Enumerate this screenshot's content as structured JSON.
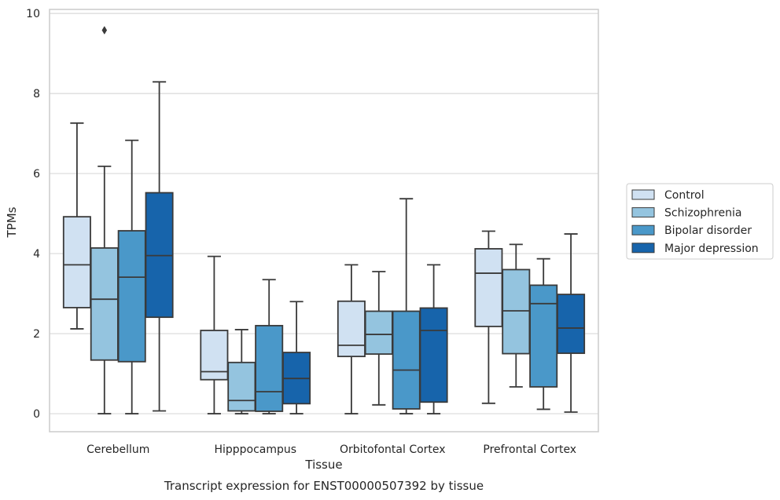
{
  "chart_data": {
    "type": "box",
    "xlabel": "Tissue",
    "ylabel": "TPMs",
    "caption": "Transcript expression for ENST00000507392 by tissue",
    "ylim": [
      -0.45,
      10.1
    ],
    "yticks": [
      0,
      2,
      4,
      6,
      8,
      10
    ],
    "grid": "horizontal",
    "legend_position": "right",
    "categories": [
      "Cerebellum",
      "Hipppocampus",
      "Orbitofontal Cortex",
      "Prefrontal Cortex"
    ],
    "series": [
      {
        "name": "Control",
        "color": "#d0e1f2",
        "boxes": [
          {
            "min": 2.12,
            "q1": 2.65,
            "median": 3.72,
            "q3": 4.92,
            "max": 7.26,
            "outliers": []
          },
          {
            "min": 0.0,
            "q1": 0.85,
            "median": 1.05,
            "q3": 2.08,
            "max": 3.93,
            "outliers": []
          },
          {
            "min": 0.0,
            "q1": 1.43,
            "median": 1.71,
            "q3": 2.81,
            "max": 3.72,
            "outliers": []
          },
          {
            "min": 0.26,
            "q1": 2.18,
            "median": 3.51,
            "q3": 4.12,
            "max": 4.56,
            "outliers": []
          }
        ]
      },
      {
        "name": "Schizophrenia",
        "color": "#94c4df",
        "boxes": [
          {
            "min": 0.0,
            "q1": 1.34,
            "median": 2.86,
            "q3": 4.14,
            "max": 6.18,
            "outliers": [
              9.58
            ]
          },
          {
            "min": 0.0,
            "q1": 0.07,
            "median": 0.33,
            "q3": 1.28,
            "max": 2.1,
            "outliers": []
          },
          {
            "min": 0.22,
            "q1": 1.49,
            "median": 1.98,
            "q3": 2.56,
            "max": 3.55,
            "outliers": []
          },
          {
            "min": 0.67,
            "q1": 1.5,
            "median": 2.57,
            "q3": 3.6,
            "max": 4.23,
            "outliers": []
          }
        ]
      },
      {
        "name": "Bipolar disorder",
        "color": "#4a98c9",
        "boxes": [
          {
            "min": 0.0,
            "q1": 1.3,
            "median": 3.41,
            "q3": 4.57,
            "max": 6.83,
            "outliers": []
          },
          {
            "min": 0.0,
            "q1": 0.06,
            "median": 0.55,
            "q3": 2.2,
            "max": 3.35,
            "outliers": []
          },
          {
            "min": 0.0,
            "q1": 0.12,
            "median": 1.09,
            "q3": 2.56,
            "max": 5.37,
            "outliers": []
          },
          {
            "min": 0.11,
            "q1": 0.67,
            "median": 2.75,
            "q3": 3.21,
            "max": 3.87,
            "outliers": []
          }
        ]
      },
      {
        "name": "Major depression",
        "color": "#1764ab",
        "boxes": [
          {
            "min": 0.07,
            "q1": 2.41,
            "median": 3.95,
            "q3": 5.52,
            "max": 8.29,
            "outliers": []
          },
          {
            "min": 0.0,
            "q1": 0.25,
            "median": 0.88,
            "q3": 1.53,
            "max": 2.8,
            "outliers": []
          },
          {
            "min": 0.0,
            "q1": 0.29,
            "median": 2.08,
            "q3": 2.64,
            "max": 3.72,
            "outliers": []
          },
          {
            "min": 0.04,
            "q1": 1.51,
            "median": 2.14,
            "q3": 2.98,
            "max": 4.49,
            "outliers": []
          }
        ]
      }
    ]
  }
}
